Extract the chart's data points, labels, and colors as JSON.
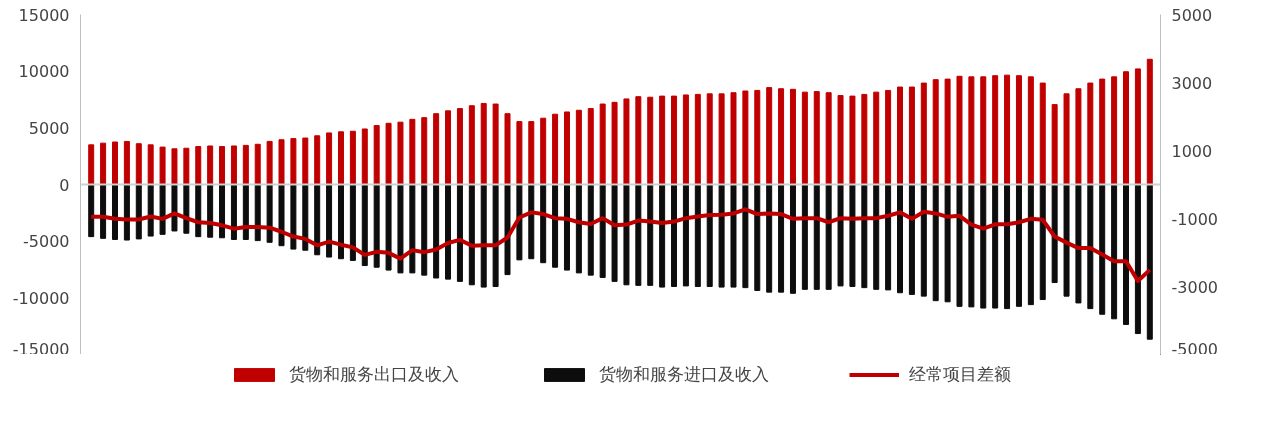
{
  "chart_data": {
    "type": "bar",
    "categories": [
      null,
      null,
      null,
      null,
      null,
      null,
      null,
      null,
      null,
      null,
      null,
      null,
      null,
      null,
      null,
      null,
      null,
      null,
      null,
      null,
      null,
      null,
      null,
      null,
      null,
      null,
      null,
      null,
      null,
      null,
      null,
      null,
      null,
      null,
      null,
      null,
      null,
      null,
      null,
      null,
      null,
      null,
      null,
      null,
      null,
      null,
      null,
      null,
      null,
      null,
      null,
      null,
      null,
      null,
      null,
      null,
      null,
      null,
      null,
      null,
      null,
      null,
      null,
      null,
      null,
      null,
      null,
      null,
      null,
      null,
      null,
      null,
      null,
      null,
      null,
      null,
      null,
      null,
      null,
      null,
      null,
      null,
      null,
      null,
      null,
      null,
      null,
      null,
      null,
      null
    ],
    "series": [
      {
        "name": "货物和服务出口及收入",
        "color": "#c00000",
        "values": [
          3500,
          3650,
          3750,
          3800,
          3600,
          3500,
          3300,
          3150,
          3200,
          3350,
          3400,
          3350,
          3400,
          3450,
          3550,
          3800,
          3950,
          4050,
          4100,
          4300,
          4550,
          4650,
          4700,
          4900,
          5200,
          5400,
          5500,
          5750,
          5900,
          6250,
          6500,
          6700,
          6950,
          7150,
          7100,
          6250,
          5550,
          5550,
          5850,
          6200,
          6400,
          6550,
          6700,
          7100,
          7250,
          7550,
          7750,
          7700,
          7800,
          7800,
          7900,
          7950,
          8000,
          8000,
          8100,
          8250,
          8300,
          8550,
          8450,
          8400,
          8150,
          8200,
          8100,
          7850,
          7800,
          7950,
          8150,
          8300,
          8600,
          8600,
          8950,
          9250,
          9300,
          9550,
          9500,
          9500,
          9600,
          9650,
          9600,
          9500,
          8950,
          7050,
          8000,
          8450,
          8950,
          9300,
          9500,
          9950,
          10200,
          11050
        ]
      },
      {
        "name": "货物和服务进口及收入",
        "color": "#0d0d0d",
        "values": [
          -4600,
          -4750,
          -4850,
          -4900,
          -4800,
          -4550,
          -4400,
          -4100,
          -4300,
          -4600,
          -4650,
          -4700,
          -4850,
          -4850,
          -4950,
          -5100,
          -5400,
          -5700,
          -5800,
          -6200,
          -6400,
          -6550,
          -6700,
          -7150,
          -7300,
          -7550,
          -7800,
          -7800,
          -8000,
          -8250,
          -8350,
          -8550,
          -8850,
          -9050,
          -9000,
          -7950,
          -6650,
          -6550,
          -6900,
          -7300,
          -7550,
          -7800,
          -8000,
          -8200,
          -8550,
          -8850,
          -8900,
          -8900,
          -9050,
          -9000,
          -8950,
          -9000,
          -9000,
          -9050,
          -9050,
          -9100,
          -9350,
          -9500,
          -9500,
          -9600,
          -9250,
          -9250,
          -9250,
          -8950,
          -9000,
          -9100,
          -9250,
          -9300,
          -9550,
          -9700,
          -9850,
          -10250,
          -10350,
          -10750,
          -10800,
          -10900,
          -10900,
          -10950,
          -10750,
          -10600,
          -10150,
          -8650,
          -9850,
          -10450,
          -10950,
          -11450,
          -11850,
          -12350,
          -13150,
          -13650
        ]
      },
      {
        "name": "经常项目差额",
        "color": "#c00000",
        "type": "line",
        "axis": "y2",
        "values": [
          -950,
          -950,
          -1010,
          -1030,
          -1030,
          -940,
          -1010,
          -850,
          -990,
          -1110,
          -1130,
          -1200,
          -1300,
          -1250,
          -1250,
          -1270,
          -1390,
          -1530,
          -1600,
          -1790,
          -1680,
          -1770,
          -1850,
          -2070,
          -1980,
          -2010,
          -2180,
          -1930,
          -1990,
          -1910,
          -1720,
          -1630,
          -1800,
          -1790,
          -1790,
          -1560,
          -970,
          -820,
          -870,
          -990,
          -1010,
          -1110,
          -1160,
          -990,
          -1200,
          -1180,
          -1060,
          -1090,
          -1130,
          -1090,
          -990,
          -940,
          -900,
          -890,
          -850,
          -730,
          -870,
          -850,
          -870,
          -1010,
          -990,
          -990,
          -1110,
          -990,
          -1010,
          -990,
          -990,
          -920,
          -820,
          -1010,
          -800,
          -850,
          -950,
          -920,
          -1180,
          -1300,
          -1170,
          -1170,
          -1110,
          -1010,
          -1040,
          -1530,
          -1710,
          -1870,
          -1870,
          -2060,
          -2260,
          -2260,
          -2840,
          -2510
        ]
      }
    ],
    "ylim": [
      -15000,
      15000
    ],
    "yticks": [
      -15000,
      -10000,
      -5000,
      0,
      5000,
      10000,
      15000
    ],
    "y2lim": [
      -5000,
      5000
    ],
    "y2ticks": [
      -5000,
      -3000,
      -1000,
      1000,
      3000,
      5000
    ],
    "stacked": true,
    "ref_lines": [
      {
        "axis": "y",
        "value": 0,
        "color": "#d0d0d0"
      }
    ],
    "grid": false,
    "legend": "bottom",
    "marker": "none",
    "line_style": "solid"
  }
}
